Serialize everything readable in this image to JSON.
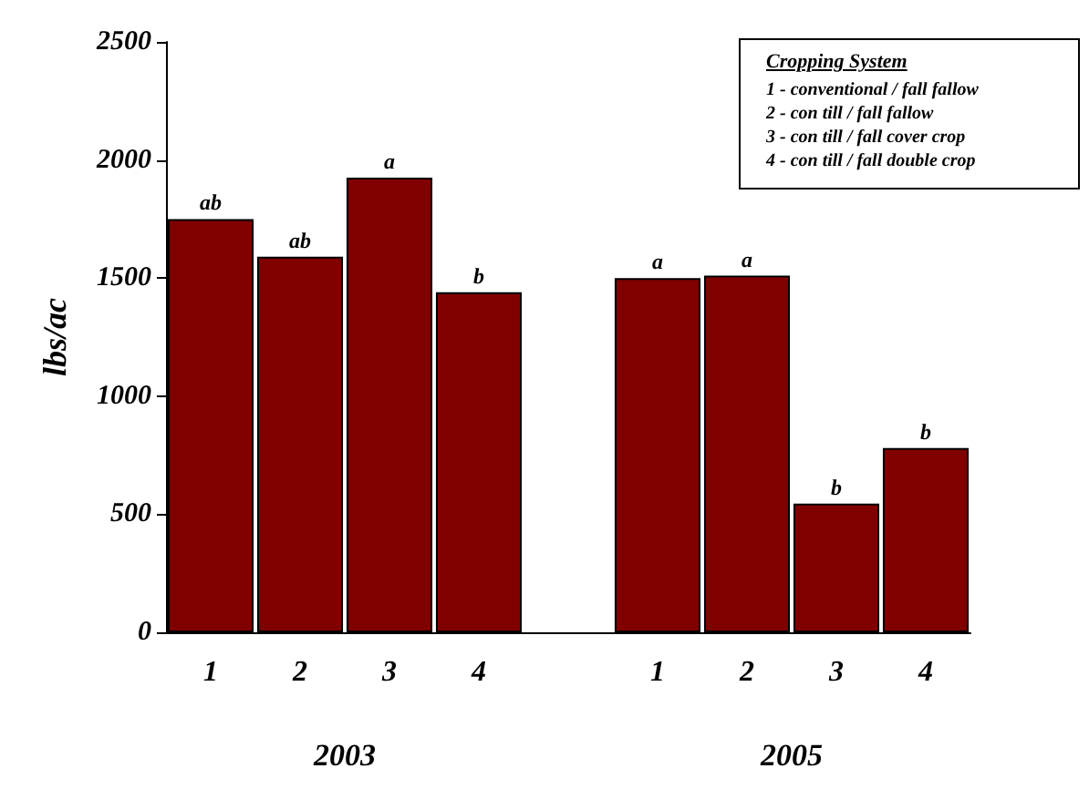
{
  "chart_data": {
    "type": "bar",
    "ylabel": "lbs/ac",
    "categories": [
      "1",
      "2",
      "3",
      "4",
      null,
      "1",
      "2",
      "3",
      "4"
    ],
    "values": [
      1750,
      1590,
      1925,
      1440,
      null,
      1500,
      1510,
      545,
      780
    ],
    "value_labels": [
      "ab",
      "ab",
      "a",
      "b",
      null,
      "a",
      "a",
      "b",
      "b"
    ],
    "color": "#800000",
    "ylim": [
      0,
      2500
    ],
    "yticks": [
      0,
      500,
      1000,
      1500,
      2000,
      2500
    ],
    "grid": false,
    "legend_title": "Cropping System",
    "annotations": [
      "2003",
      "2005",
      "1 - conventional / fall fallow",
      "2 - con till / fall fallow",
      "3 - con till / fall cover crop",
      "4 - con till / fall double crop"
    ]
  }
}
